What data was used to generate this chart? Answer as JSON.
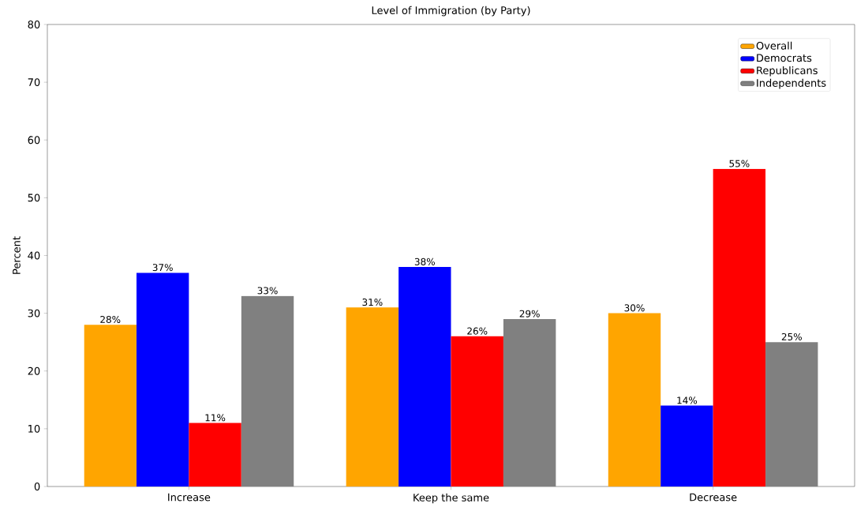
{
  "chart_data": {
    "type": "bar",
    "title": "Level of Immigration (by Party)",
    "ylabel": "Percent",
    "categories": [
      "Increase",
      "Keep the same",
      "Decrease"
    ],
    "series": [
      {
        "name": "Overall",
        "color": "#ffa500",
        "values": [
          28,
          31,
          30
        ],
        "value_labels": [
          "28%",
          "31%",
          "30%"
        ]
      },
      {
        "name": "Democrats",
        "color": "#0000ff",
        "values": [
          37,
          38,
          14
        ],
        "value_labels": [
          "37%",
          "38%",
          "14%"
        ]
      },
      {
        "name": "Republicans",
        "color": "#ff0000",
        "values": [
          11,
          26,
          55
        ],
        "value_labels": [
          "11%",
          "26%",
          "55%"
        ]
      },
      {
        "name": "Independents",
        "color": "#808080",
        "values": [
          33,
          29,
          25
        ],
        "value_labels": [
          "33%",
          "29%",
          "25%"
        ]
      }
    ],
    "ylim": [
      0,
      80
    ],
    "yticks": [
      0,
      10,
      20,
      30,
      40,
      50,
      60,
      70,
      80
    ],
    "grid": false,
    "legend": "top right"
  }
}
